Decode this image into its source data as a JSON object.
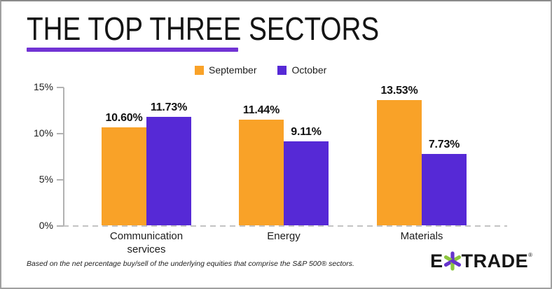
{
  "title": {
    "text": "THE TOP THREE SECTORS"
  },
  "accent": {
    "underline_color": "#7133d4",
    "border_color": "#a0a0a0"
  },
  "chart_data": {
    "type": "bar",
    "title": "THE TOP THREE SECTORS",
    "categories": [
      "Communication services",
      "Energy",
      "Materials"
    ],
    "series": [
      {
        "name": "September",
        "color": "#f9a228",
        "values": [
          10.6,
          11.44,
          13.53
        ]
      },
      {
        "name": "October",
        "color": "#5629d6",
        "values": [
          11.73,
          9.11,
          7.73
        ]
      }
    ],
    "value_labels": [
      [
        "10.60%",
        "11.44%",
        "13.53%"
      ],
      [
        "11.73%",
        "9.11%",
        "7.73%"
      ]
    ],
    "xlabel": "",
    "ylabel": "",
    "ylim": [
      0,
      15
    ],
    "yticks": [
      0,
      5,
      10,
      15
    ],
    "ytick_labels": [
      "0%",
      "5%",
      "10%",
      "15%"
    ],
    "grid": false,
    "legend_position": "top-center",
    "baseline_style": "dashed"
  },
  "footnote": {
    "text": "Based on the net percentage buy/sell of the underlying equities that comprise the S&P 500® sectors."
  },
  "logo": {
    "left": "E",
    "right": "TRADE",
    "registered": "®",
    "green": "#8dc63f",
    "purple": "#6633cc"
  }
}
